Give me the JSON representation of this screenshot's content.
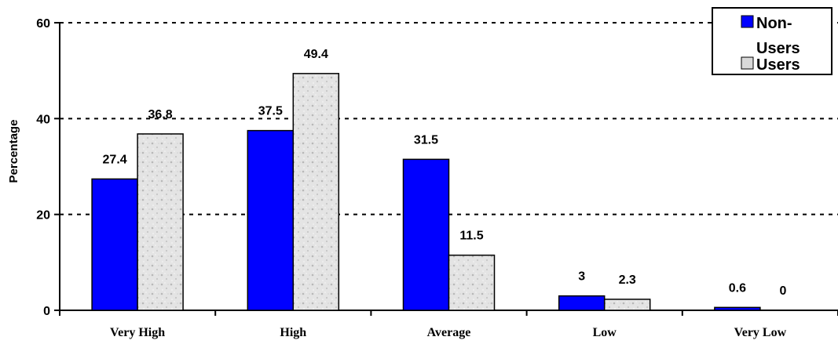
{
  "chart_data": {
    "type": "bar",
    "title": "",
    "xlabel": "",
    "ylabel": "Percentage",
    "categories": [
      "Very High",
      "High",
      "Average",
      "Low",
      "Very Low"
    ],
    "ylim": [
      0,
      60
    ],
    "yticks": [
      0,
      20,
      40,
      60
    ],
    "grid": true,
    "legend_position": "top-right",
    "series": [
      {
        "name_lines": [
          "Non-",
          "Users"
        ],
        "values": [
          27.4,
          37.5,
          31.5,
          3,
          0.6
        ],
        "labels": [
          "27.4",
          "37.5",
          "31.5",
          "3",
          "0.6"
        ],
        "color": "#0000ff"
      },
      {
        "name": "Users",
        "values": [
          36.8,
          49.4,
          11.5,
          2.3,
          0
        ],
        "labels": [
          "36.8",
          "49.4",
          "11.5",
          "2.3",
          "0"
        ],
        "color": "#d9d9d9"
      }
    ]
  }
}
